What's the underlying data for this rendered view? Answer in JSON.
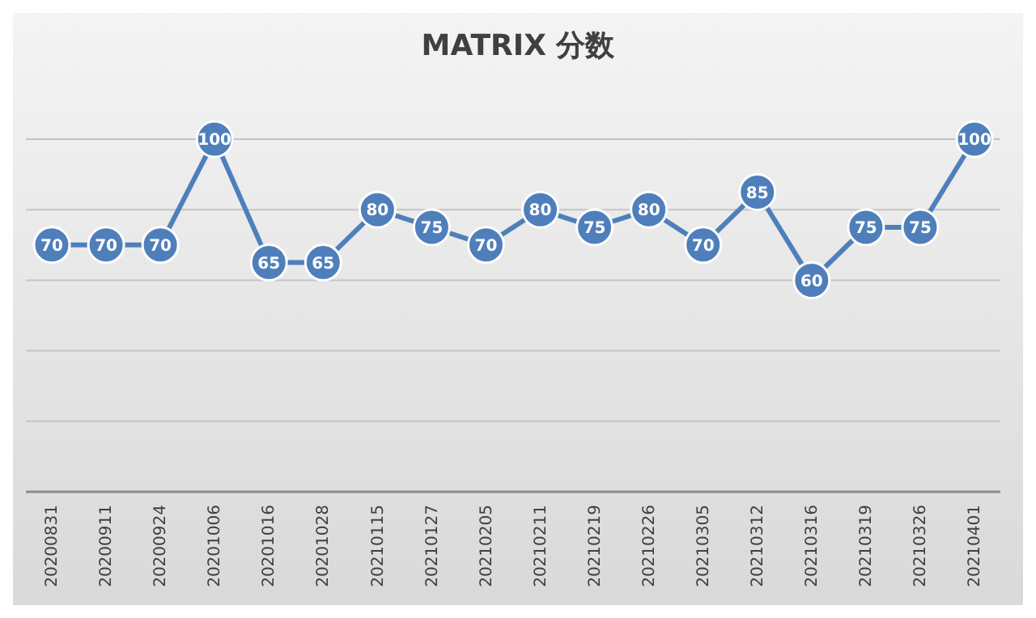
{
  "chart_data": {
    "type": "line",
    "title": "MATRIX 分数",
    "categories": [
      "20200831",
      "20200911",
      "20200924",
      "20201006",
      "20201016",
      "20201028",
      "20210115",
      "20210127",
      "20210205",
      "20210211",
      "20210219",
      "20210226",
      "20210305",
      "20210312",
      "20210316",
      "20210319",
      "20210326",
      "20210401"
    ],
    "series": [
      {
        "color": "#4f7fbb",
        "values": [
          70,
          70,
          70,
          100,
          65,
          65,
          80,
          75,
          70,
          80,
          75,
          80,
          70,
          85,
          60,
          75,
          75,
          100
        ]
      }
    ],
    "ylim": [
      0,
      100
    ],
    "yticks": [
      {
        "value": 0,
        "label": null
      },
      {
        "value": 20,
        "label": null
      },
      {
        "value": 40,
        "label": null
      },
      {
        "value": 60,
        "label": null
      },
      {
        "value": 80,
        "label": null
      },
      {
        "value": 100,
        "label": null
      }
    ],
    "grid": "y",
    "tick_labels": "x",
    "data_labels": true,
    "marker": "circle",
    "line_style": "solid",
    "legend": false
  }
}
